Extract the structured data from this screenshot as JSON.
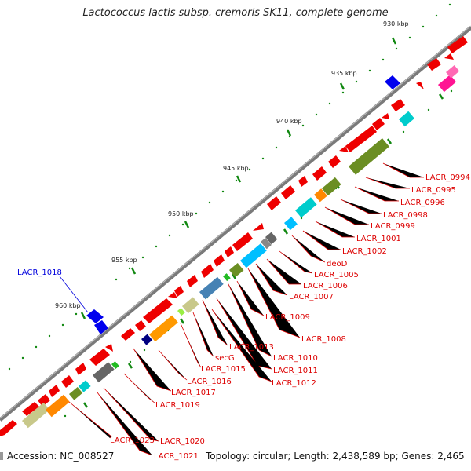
{
  "title": "Lactococcus lactis subsp. cremoris SK11, complete genome",
  "footer": {
    "accession": "Accession: NC_008527",
    "topology": "Topology: circular; Length: 2,438,589 bp; Genes: 2,465"
  },
  "ticks": [
    "930 kbp",
    "935 kbp",
    "940 kbp",
    "945 kbp",
    "950 kbp",
    "955 kbp",
    "960 kbp"
  ],
  "gene_labels": [
    "LACR_0994",
    "LACR_0995",
    "LACR_0996",
    "LACR_0998",
    "LACR_0999",
    "LACR_1001",
    "LACR_1002",
    "deoD",
    "LACR_1005",
    "LACR_1006",
    "LACR_1007",
    "LACR_1009",
    "LACR_1008",
    "LACR_1013",
    "LACR_1010",
    "secG",
    "LACR_1011",
    "LACR_1015",
    "LACR_1012",
    "LACR_1016",
    "LACR_1017",
    "LACR_1019",
    "LACR_1018",
    "LACR_1020",
    "LACR_1023",
    "LACR_1021"
  ],
  "colors": {
    "forward_cds": "#ee0000",
    "backbone": "#808080",
    "label_red": "#dd0000",
    "label_blue": "#0000dd",
    "tick_green": "#118811"
  }
}
